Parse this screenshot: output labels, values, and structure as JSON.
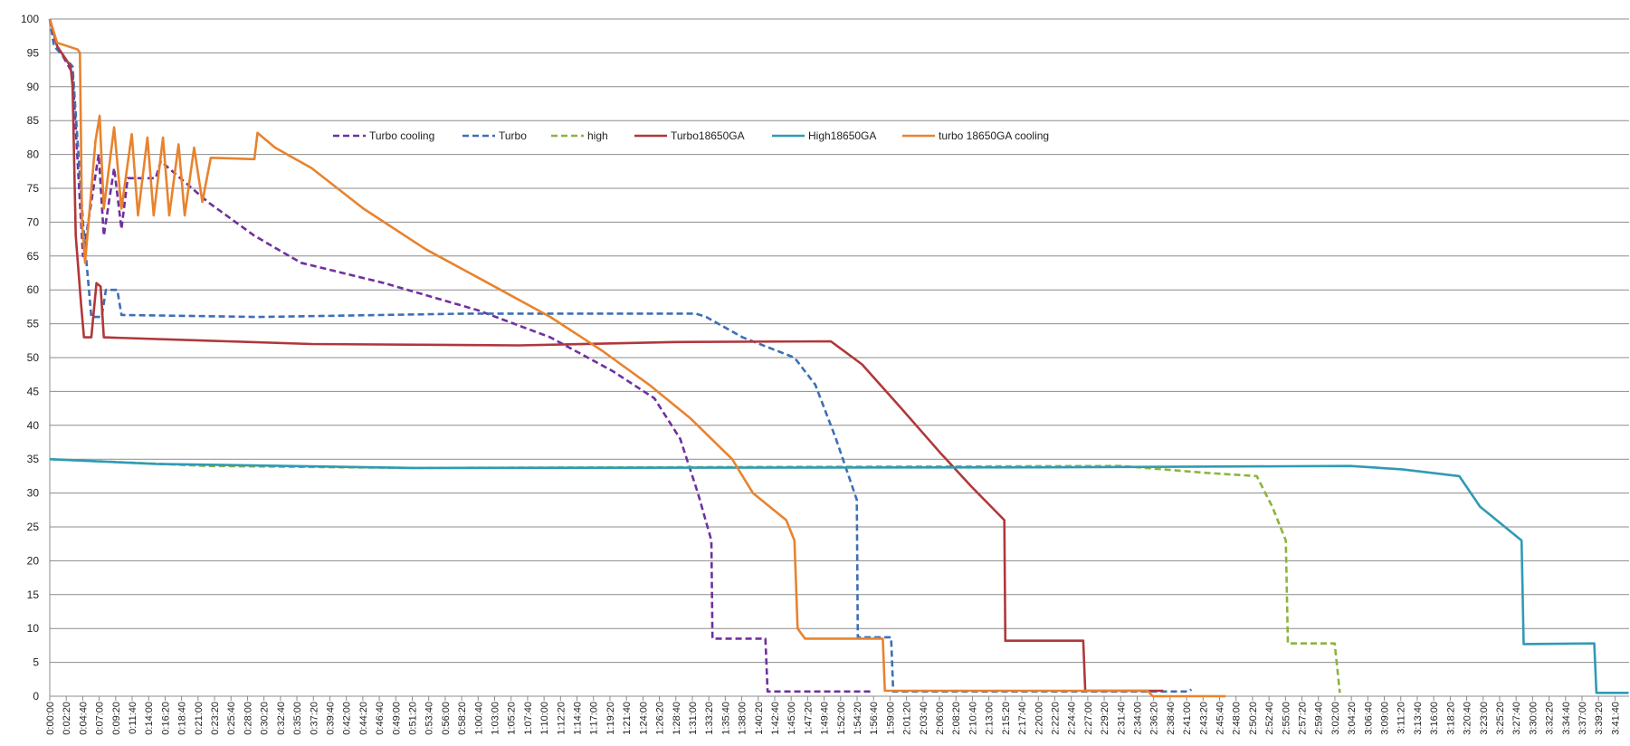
{
  "chart_data": {
    "type": "line",
    "xlim": [
      0,
      13420
    ],
    "ylim": [
      0,
      100
    ],
    "yticks": [
      0,
      5,
      10,
      15,
      20,
      25,
      30,
      35,
      40,
      45,
      50,
      55,
      60,
      65,
      70,
      75,
      80,
      85,
      90,
      95,
      100
    ],
    "grid": true,
    "legend": "top",
    "xticks": [
      {
        "value": 0,
        "label": "0:00:00"
      },
      {
        "value": 140,
        "label": "0:02:20"
      },
      {
        "value": 280,
        "label": "0:04:40"
      },
      {
        "value": 420,
        "label": "0:07:00"
      },
      {
        "value": 560,
        "label": "0:09:20"
      },
      {
        "value": 700,
        "label": "0:11:40"
      },
      {
        "value": 840,
        "label": "0:14:00"
      },
      {
        "value": 980,
        "label": "0:16:20"
      },
      {
        "value": 1120,
        "label": "0:18:40"
      },
      {
        "value": 1260,
        "label": "0:21:00"
      },
      {
        "value": 1400,
        "label": "0:23:20"
      },
      {
        "value": 1540,
        "label": "0:25:40"
      },
      {
        "value": 1680,
        "label": "0:28:00"
      },
      {
        "value": 1820,
        "label": "0:30:20"
      },
      {
        "value": 1960,
        "label": "0:32:40"
      },
      {
        "value": 2100,
        "label": "0:35:00"
      },
      {
        "value": 2240,
        "label": "0:37:20"
      },
      {
        "value": 2380,
        "label": "0:39:40"
      },
      {
        "value": 2520,
        "label": "0:42:00"
      },
      {
        "value": 2660,
        "label": "0:44:20"
      },
      {
        "value": 2800,
        "label": "0:46:40"
      },
      {
        "value": 2940,
        "label": "0:49:00"
      },
      {
        "value": 3080,
        "label": "0:51:20"
      },
      {
        "value": 3220,
        "label": "0:53:40"
      },
      {
        "value": 3360,
        "label": "0:56:00"
      },
      {
        "value": 3500,
        "label": "0:58:20"
      },
      {
        "value": 3640,
        "label": "1:00:40"
      },
      {
        "value": 3780,
        "label": "1:03:00"
      },
      {
        "value": 3920,
        "label": "1:05:20"
      },
      {
        "value": 4060,
        "label": "1:07:40"
      },
      {
        "value": 4200,
        "label": "1:10:00"
      },
      {
        "value": 4340,
        "label": "1:12:20"
      },
      {
        "value": 4480,
        "label": "1:14:40"
      },
      {
        "value": 4620,
        "label": "1:17:00"
      },
      {
        "value": 4760,
        "label": "1:19:20"
      },
      {
        "value": 4900,
        "label": "1:21:40"
      },
      {
        "value": 5040,
        "label": "1:24:00"
      },
      {
        "value": 5180,
        "label": "1:26:20"
      },
      {
        "value": 5320,
        "label": "1:28:40"
      },
      {
        "value": 5460,
        "label": "1:31:00"
      },
      {
        "value": 5600,
        "label": "1:33:20"
      },
      {
        "value": 5740,
        "label": "1:35:40"
      },
      {
        "value": 5880,
        "label": "1:38:00"
      },
      {
        "value": 6020,
        "label": "1:40:20"
      },
      {
        "value": 6160,
        "label": "1:42:40"
      },
      {
        "value": 6300,
        "label": "1:45:00"
      },
      {
        "value": 6440,
        "label": "1:47:20"
      },
      {
        "value": 6580,
        "label": "1:49:40"
      },
      {
        "value": 6720,
        "label": "1:52:00"
      },
      {
        "value": 6860,
        "label": "1:54:20"
      },
      {
        "value": 7000,
        "label": "1:56:40"
      },
      {
        "value": 7140,
        "label": "1:59:00"
      },
      {
        "value": 7280,
        "label": "2:01:20"
      },
      {
        "value": 7420,
        "label": "2:03:40"
      },
      {
        "value": 7560,
        "label": "2:06:00"
      },
      {
        "value": 7700,
        "label": "2:08:20"
      },
      {
        "value": 7840,
        "label": "2:10:40"
      },
      {
        "value": 7980,
        "label": "2:13:00"
      },
      {
        "value": 8120,
        "label": "2:15:20"
      },
      {
        "value": 8260,
        "label": "2:17:40"
      },
      {
        "value": 8400,
        "label": "2:20:00"
      },
      {
        "value": 8540,
        "label": "2:22:20"
      },
      {
        "value": 8680,
        "label": "2:24:40"
      },
      {
        "value": 8820,
        "label": "2:27:00"
      },
      {
        "value": 8960,
        "label": "2:29:20"
      },
      {
        "value": 9100,
        "label": "2:31:40"
      },
      {
        "value": 9240,
        "label": "2:34:00"
      },
      {
        "value": 9380,
        "label": "2:36:20"
      },
      {
        "value": 9520,
        "label": "2:38:40"
      },
      {
        "value": 9660,
        "label": "2:41:00"
      },
      {
        "value": 9800,
        "label": "2:43:20"
      },
      {
        "value": 9940,
        "label": "2:45:40"
      },
      {
        "value": 10080,
        "label": "2:48:00"
      },
      {
        "value": 10220,
        "label": "2:50:20"
      },
      {
        "value": 10360,
        "label": "2:52:40"
      },
      {
        "value": 10500,
        "label": "2:55:00"
      },
      {
        "value": 10640,
        "label": "2:57:20"
      },
      {
        "value": 10780,
        "label": "2:59:40"
      },
      {
        "value": 10920,
        "label": "3:02:00"
      },
      {
        "value": 11060,
        "label": "3:04:20"
      },
      {
        "value": 11200,
        "label": "3:06:40"
      },
      {
        "value": 11340,
        "label": "3:09:00"
      },
      {
        "value": 11480,
        "label": "3:11:20"
      },
      {
        "value": 11620,
        "label": "3:13:40"
      },
      {
        "value": 11760,
        "label": "3:16:00"
      },
      {
        "value": 11900,
        "label": "3:18:20"
      },
      {
        "value": 12040,
        "label": "3:20:40"
      },
      {
        "value": 12180,
        "label": "3:23:00"
      },
      {
        "value": 12320,
        "label": "3:25:20"
      },
      {
        "value": 12460,
        "label": "3:27:40"
      },
      {
        "value": 12600,
        "label": "3:30:00"
      },
      {
        "value": 12740,
        "label": "3:32:20"
      },
      {
        "value": 12880,
        "label": "3:34:40"
      },
      {
        "value": 13020,
        "label": "3:37:00"
      },
      {
        "value": 13160,
        "label": "3:39:20"
      },
      {
        "value": 13300,
        "label": "3:41:40"
      }
    ],
    "series": [
      {
        "name": "Turbo cooling",
        "color": "#7030a0",
        "dashed": true,
        "x": [
          0,
          62,
          194,
          282,
          415,
          459,
          547,
          609,
          662,
          900,
          944,
          1342,
          1739,
          2136,
          2842,
          3636,
          4254,
          4784,
          5137,
          5357,
          5507,
          5622,
          5631,
          6081,
          6099,
          6990
        ],
        "values": [
          100,
          96,
          92,
          65,
          80,
          68,
          78,
          69,
          76.5,
          76.5,
          79,
          73,
          68,
          64,
          61,
          57,
          53,
          48,
          44,
          38,
          30,
          23,
          8.5,
          8.5,
          0.7,
          0.7
        ]
      },
      {
        "name": "Turbo",
        "color": "#3d6fb6",
        "dashed": true,
        "x": [
          0,
          35,
          194,
          282,
          353,
          441,
          477,
          574,
          609,
          1783,
          3548,
          5490,
          5578,
          5887,
          6328,
          6505,
          6681,
          6858,
          6866,
          7149,
          7167,
          9682,
          9700
        ],
        "values": [
          100,
          96,
          93,
          70,
          56,
          56,
          60,
          60,
          56.3,
          56,
          56.5,
          56.5,
          56,
          53,
          50,
          46,
          38,
          29,
          8.7,
          8.7,
          0.7,
          0.7,
          1
        ]
      },
      {
        "name": "high",
        "color": "#8db43e",
        "dashed": true,
        "x": [
          0,
          1342,
          3107,
          9108,
          9814,
          10256,
          10388,
          10503,
          10521,
          10918,
          10962
        ],
        "values": [
          35,
          34,
          33.7,
          34,
          33,
          32.5,
          28,
          23,
          7.8,
          7.8,
          0.5
        ]
      },
      {
        "name": "Turbo18650GA",
        "color": "#b0383a",
        "dashed": false,
        "x": [
          0,
          62,
          177,
          194,
          221,
          265,
          291,
          353,
          397,
          432,
          459,
          1342,
          2224,
          3989,
          5313,
          6637,
          6902,
          7211,
          7564,
          7829,
          8111,
          8120,
          8782,
          8799,
          9461
        ],
        "values": [
          100,
          96,
          93,
          90,
          68,
          58,
          53,
          53,
          61,
          60.5,
          53,
          52.5,
          52,
          51.8,
          52.3,
          52.4,
          49,
          43,
          36,
          31,
          26,
          8.2,
          8.2,
          0.8,
          0.8
        ]
      },
      {
        "name": "High18650GA",
        "color": "#2f9bb5",
        "dashed": false,
        "x": [
          0,
          900,
          3107,
          8402,
          11050,
          11491,
          11977,
          12153,
          12506,
          12524,
          13124,
          13142,
          13416
        ],
        "values": [
          35,
          34.3,
          33.7,
          33.8,
          34,
          33.5,
          32.5,
          28,
          23,
          7.7,
          7.8,
          0.5,
          0.5
        ]
      },
      {
        "name": "turbo 18650GA cooling",
        "color": "#e8832e",
        "dashed": false,
        "x": [
          0,
          62,
          238,
          256,
          274,
          300,
          388,
          424,
          459,
          547,
          609,
          697,
          750,
          830,
          883,
          962,
          1015,
          1094,
          1147,
          1227,
          1297,
          1368,
          1739,
          1765,
          1915,
          2224,
          2665,
          3195,
          3725,
          4254,
          4695,
          5093,
          5446,
          5799,
          5975,
          6258,
          6328,
          6355,
          6417,
          7078,
          7096,
          9329,
          9373,
          9991
        ],
        "values": [
          100,
          96.5,
          95.5,
          95,
          70,
          64,
          82,
          85.7,
          72,
          84,
          72,
          83,
          71,
          82.5,
          71,
          82.5,
          71,
          81.5,
          71,
          81,
          73,
          79.5,
          79.3,
          83.2,
          81,
          78,
          72,
          66,
          61,
          56,
          51,
          46,
          41,
          35,
          30,
          26,
          23,
          10,
          8.5,
          8.5,
          0.8,
          0.8,
          0,
          0
        ]
      }
    ]
  }
}
